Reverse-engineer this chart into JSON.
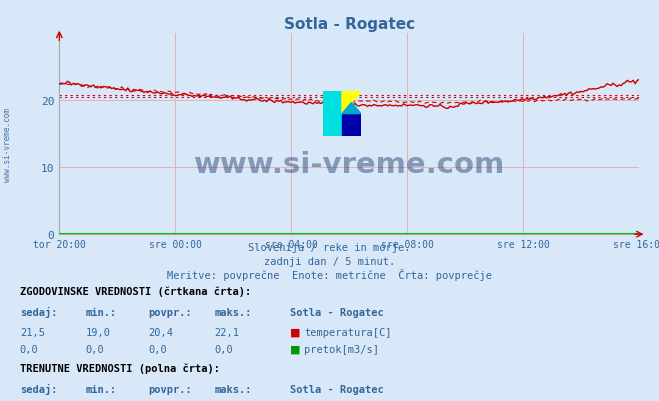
{
  "title": "Sotla - Rogatec",
  "bg_color": "#d8e8f8",
  "plot_bg_color": "#d8e8f8",
  "grid_color": "#e8b0b0",
  "text_color": "#336699",
  "xlabel_ticks": [
    "tor 20:00",
    "sre 00:00",
    "sre 04:00",
    "sre 08:00",
    "sre 12:00",
    "sre 16:00"
  ],
  "xtick_positions": [
    0,
    48,
    96,
    144,
    192,
    240
  ],
  "ylim": [
    0,
    30
  ],
  "yticks": [
    0,
    10,
    20
  ],
  "total_points": 289,
  "hist_avg": 20.4,
  "curr_avg": 20.7,
  "line_color": "#cc0000",
  "green_color": "#00bb00",
  "watermark_text": "www.si-vreme.com",
  "watermark_color": "#1a3a6a",
  "subtitle1": "Slovenija / reke in morje.",
  "subtitle2": "zadnji dan / 5 minut.",
  "subtitle3": "Meritve: povprečne  Enote: metrične  Črta: povprečje",
  "info_label1": "ZGODOVINSKE VREDNOSTI (črtkana črta):",
  "curr_label": "TRENUTNE VREDNOSTI (polna črta):"
}
